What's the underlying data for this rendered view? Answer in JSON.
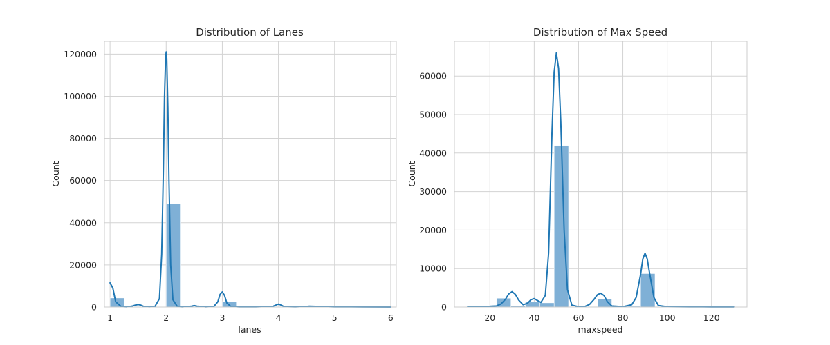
{
  "colors": {
    "bar_fill": "#7fb0d6",
    "bar_edge": "#5b95c4",
    "line": "#1f77b4",
    "grid": "#d3d3d3",
    "axes_edge": "#cccccc",
    "text": "#262626"
  },
  "chart_data": [
    {
      "type": "bar",
      "subtype": "histogram-with-kde",
      "title": "Distribution of Lanes",
      "xlabel": "lanes",
      "ylabel": "Count",
      "xlim": [
        0.9,
        6.1
      ],
      "ylim": [
        0,
        126000
      ],
      "xticks": [
        1,
        2,
        3,
        4,
        5,
        6
      ],
      "yticks": [
        0,
        20000,
        40000,
        60000,
        80000,
        100000,
        120000
      ],
      "grid": true,
      "bins": [
        {
          "x0": 1.0,
          "x1": 1.25,
          "value": 4300
        },
        {
          "x0": 1.25,
          "x1": 1.5,
          "value": 150
        },
        {
          "x0": 1.5,
          "x1": 1.75,
          "value": 0
        },
        {
          "x0": 1.75,
          "x1": 2.0,
          "value": 0
        },
        {
          "x0": 2.0,
          "x1": 2.25,
          "value": 49000
        },
        {
          "x0": 2.25,
          "x1": 2.5,
          "value": 0
        },
        {
          "x0": 2.5,
          "x1": 2.75,
          "value": 150
        },
        {
          "x0": 2.75,
          "x1": 3.0,
          "value": 0
        },
        {
          "x0": 3.0,
          "x1": 3.25,
          "value": 2600
        },
        {
          "x0": 3.25,
          "x1": 3.5,
          "value": 0
        },
        {
          "x0": 3.5,
          "x1": 3.75,
          "value": 0
        },
        {
          "x0": 3.75,
          "x1": 4.0,
          "value": 0
        },
        {
          "x0": 4.0,
          "x1": 4.25,
          "value": 200
        },
        {
          "x0": 4.25,
          "x1": 4.5,
          "value": 0
        },
        {
          "x0": 4.5,
          "x1": 4.75,
          "value": 0
        },
        {
          "x0": 4.75,
          "x1": 5.0,
          "value": 0
        },
        {
          "x0": 5.0,
          "x1": 5.25,
          "value": 50
        },
        {
          "x0": 5.25,
          "x1": 5.5,
          "value": 0
        },
        {
          "x0": 5.5,
          "x1": 5.75,
          "value": 0
        },
        {
          "x0": 5.75,
          "x1": 6.0,
          "value": 20
        }
      ],
      "kde": {
        "x": [
          1.0,
          1.05,
          1.1,
          1.2,
          1.3,
          1.4,
          1.45,
          1.5,
          1.55,
          1.6,
          1.7,
          1.8,
          1.88,
          1.92,
          1.95,
          1.97,
          1.99,
          2.0,
          2.01,
          2.03,
          2.05,
          2.08,
          2.12,
          2.2,
          2.3,
          2.45,
          2.5,
          2.55,
          2.7,
          2.85,
          2.92,
          2.96,
          3.0,
          3.04,
          3.08,
          3.15,
          3.3,
          3.6,
          3.9,
          3.95,
          4.0,
          4.05,
          4.1,
          4.3,
          4.5,
          4.55,
          5.0,
          5.5,
          6.0
        ],
        "y": [
          11500,
          9000,
          2500,
          200,
          100,
          500,
          900,
          1200,
          900,
          300,
          100,
          300,
          4000,
          25000,
          65000,
          100000,
          118000,
          121000,
          118000,
          95000,
          60000,
          20000,
          3500,
          200,
          100,
          400,
          700,
          400,
          100,
          300,
          2500,
          6000,
          7200,
          5500,
          2000,
          300,
          100,
          100,
          300,
          900,
          1400,
          900,
          200,
          100,
          300,
          400,
          100,
          50,
          20
        ]
      }
    },
    {
      "type": "bar",
      "subtype": "histogram-with-kde",
      "title": "Distribution of Max Speed",
      "xlabel": "maxspeed",
      "ylabel": "Count",
      "xlim": [
        4,
        136
      ],
      "ylim": [
        0,
        69000
      ],
      "xticks": [
        20,
        40,
        60,
        80,
        100,
        120
      ],
      "yticks": [
        0,
        10000,
        20000,
        30000,
        40000,
        50000,
        60000
      ],
      "grid": true,
      "bins": [
        {
          "x0": 10,
          "x1": 16.5,
          "value": 40
        },
        {
          "x0": 16.5,
          "x1": 23,
          "value": 60
        },
        {
          "x0": 23,
          "x1": 29.5,
          "value": 2300
        },
        {
          "x0": 29.5,
          "x1": 36,
          "value": 300
        },
        {
          "x0": 36,
          "x1": 42.5,
          "value": 1300
        },
        {
          "x0": 42.5,
          "x1": 49,
          "value": 1100
        },
        {
          "x0": 49,
          "x1": 55.5,
          "value": 42000
        },
        {
          "x0": 55.5,
          "x1": 62,
          "value": 100
        },
        {
          "x0": 62,
          "x1": 68.5,
          "value": 150
        },
        {
          "x0": 68.5,
          "x1": 75,
          "value": 2200
        },
        {
          "x0": 75,
          "x1": 81.5,
          "value": 50
        },
        {
          "x0": 81.5,
          "x1": 88,
          "value": 200
        },
        {
          "x0": 88,
          "x1": 94.5,
          "value": 8700
        },
        {
          "x0": 94.5,
          "x1": 101,
          "value": 50
        },
        {
          "x0": 101,
          "x1": 107.5,
          "value": 100
        },
        {
          "x0": 107.5,
          "x1": 114,
          "value": 50
        },
        {
          "x0": 114,
          "x1": 120.5,
          "value": 30
        },
        {
          "x0": 120.5,
          "x1": 127,
          "value": 20
        },
        {
          "x0": 127,
          "x1": 130,
          "value": 20
        }
      ],
      "kde": {
        "x": [
          10,
          15,
          20,
          23,
          25,
          27,
          28.5,
          30,
          31.5,
          33,
          35,
          37,
          38.5,
          40,
          41.5,
          43,
          45,
          46.5,
          48,
          49,
          50,
          51,
          52,
          53.5,
          55,
          57,
          60,
          63,
          65,
          67,
          68.5,
          70,
          71.5,
          73,
          75,
          80,
          84,
          86,
          88,
          89,
          90,
          91,
          92,
          94,
          96,
          100,
          110,
          120,
          130
        ],
        "y": [
          100,
          150,
          200,
          300,
          800,
          2000,
          3400,
          4000,
          3300,
          1800,
          600,
          1000,
          1900,
          2200,
          1700,
          1200,
          3000,
          14000,
          45000,
          61000,
          66000,
          62000,
          48000,
          20000,
          4500,
          500,
          100,
          200,
          700,
          2000,
          3200,
          3600,
          3000,
          1400,
          300,
          100,
          600,
          2500,
          8500,
          12500,
          14000,
          12500,
          9000,
          2500,
          400,
          100,
          50,
          30,
          20
        ]
      }
    }
  ]
}
